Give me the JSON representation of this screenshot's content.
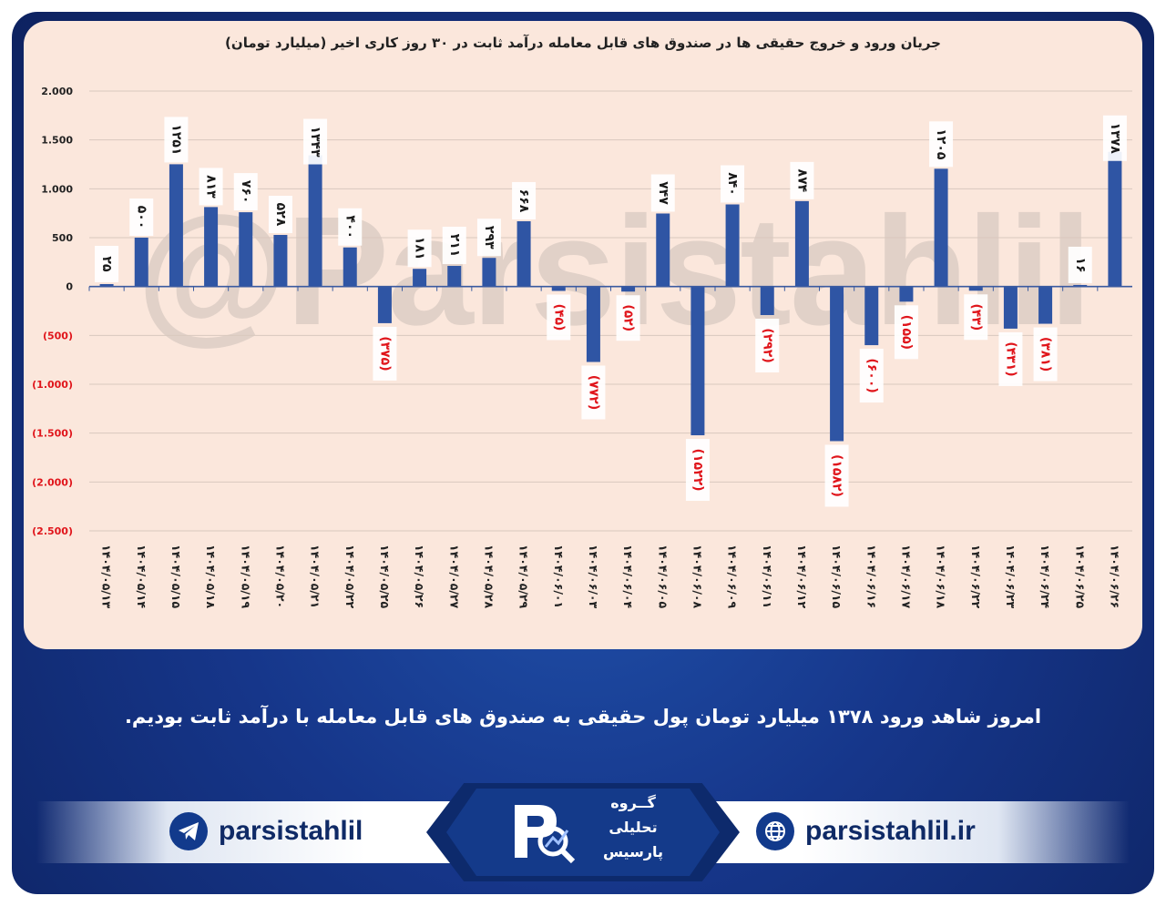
{
  "chart_data": {
    "type": "bar",
    "title": "جریان ورود و خروج حقیقی ها در صندوق های قابل معامله درآمد ثابت در ۳۰ روز کاری اخیر (میلیارد تومان)",
    "ylim": [
      -2500,
      2000
    ],
    "y_ticks": [
      2000,
      1500,
      1000,
      500,
      0,
      -500,
      -1000,
      -1500,
      -2000,
      -2500
    ],
    "y_tick_labels": [
      "2.000",
      "1.500",
      "1.000",
      "500",
      "0",
      "(500)",
      "(1.000)",
      "(1.500)",
      "(2.000)",
      "(2.500)"
    ],
    "grid": true,
    "categories": [
      "۱۴۰۴/۰۵/۱۳",
      "۱۴۰۴/۰۵/۱۴",
      "۱۴۰۴/۰۵/۱۵",
      "۱۴۰۴/۰۵/۱۸",
      "۱۴۰۴/۰۵/۱۹",
      "۱۴۰۴/۰۵/۲۰",
      "۱۴۰۴/۰۵/۲۱",
      "۱۴۰۴/۰۵/۲۲",
      "۱۴۰۴/۰۵/۲۵",
      "۱۴۰۴/۰۵/۲۶",
      "۱۴۰۴/۰۵/۲۷",
      "۱۴۰۴/۰۵/۲۸",
      "۱۴۰۴/۰۵/۲۹",
      "۱۴۰۴/۰۶/۰۱",
      "۱۴۰۴/۰۶/۰۳",
      "۱۴۰۴/۰۶/۰۴",
      "۱۴۰۴/۰۶/۰۵",
      "۱۴۰۴/۰۶/۰۸",
      "۱۴۰۴/۰۶/۰۹",
      "۱۴۰۴/۰۶/۱۱",
      "۱۴۰۴/۰۶/۱۲",
      "۱۴۰۴/۰۶/۱۵",
      "۱۴۰۴/۰۶/۱۶",
      "۱۴۰۴/۰۶/۱۷",
      "۱۴۰۴/۰۶/۱۸",
      "۱۴۰۴/۰۶/۲۲",
      "۱۴۰۴/۰۶/۲۳",
      "۱۴۰۴/۰۶/۲۴",
      "۱۴۰۴/۰۶/۲۵",
      "۱۴۰۴/۰۶/۲۶"
    ],
    "values": [
      25,
      500,
      1251,
      813,
      760,
      528,
      1343,
      400,
      -375,
      181,
      211,
      293,
      668,
      -45,
      -772,
      -52,
      747,
      -1522,
      840,
      -292,
      874,
      -1582,
      -600,
      -155,
      1205,
      -43,
      -431,
      -381,
      16,
      1378
    ],
    "value_labels": [
      "۲۵",
      "۵۰۰",
      "۱۲۵۱",
      "۸۱۳",
      "۷۶۰",
      "۵۲۸",
      "۱۳۴۳",
      "۴۰۰",
      "(۳۷۵)",
      "۱۸۱",
      "۲۱۱",
      "۲۹۳",
      "۶۶۸",
      "(۴۵)",
      "(۷۷۲)",
      "(۵۲)",
      "۷۴۷",
      "(۱۵۲۲)",
      "۸۴۰",
      "(۲۹۲)",
      "۸۷۴",
      "(۱۵۸۲)",
      "(۶۰۰)",
      "(۱۵۵)",
      "۱۲۰۵",
      "(۴۳)",
      "(۴۳۱)",
      "(۳۸۱)",
      "۱۶",
      "۱۳۷۸"
    ]
  },
  "watermark": "@Parsistahlil",
  "headline": "امروز شاهد ورود ۱۳۷۸ میلیارد تومان پول حقیقی به صندوق های قابل معامله با درآمد ثابت بودیم.",
  "footer": {
    "telegram_handle": "parsistahlil",
    "website": "parsistahlil.ir",
    "logo_lines": [
      "گــروه",
      "تحلیلی",
      "پارسیس"
    ],
    "telegram_icon": "telegram-icon",
    "globe_icon": "globe-icon"
  },
  "colors": {
    "bar": "#2f55a4",
    "negative_label": "#e0151b",
    "positive_label": "#1a1a1a",
    "background": "#16368a",
    "chart_bg": "#fbe7dc"
  }
}
